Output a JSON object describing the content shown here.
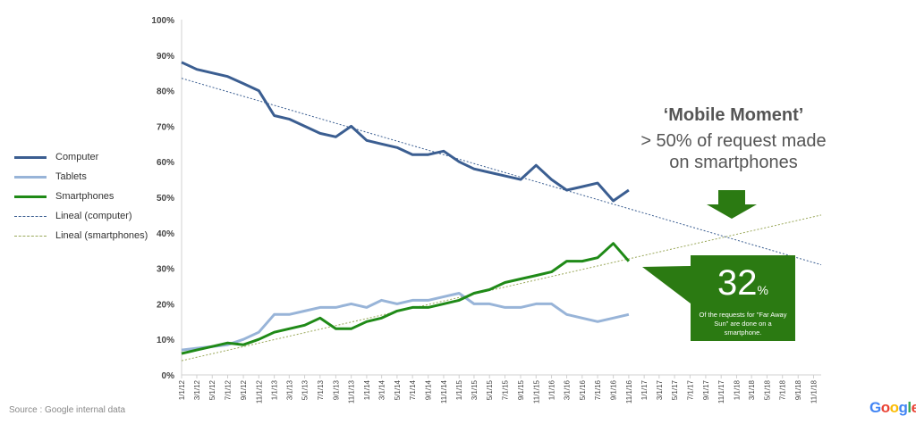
{
  "chart_data": {
    "type": "line",
    "x_tick_labels": [
      "1/1/12",
      "3/1/12",
      "5/1/12",
      "7/1/12",
      "9/1/12",
      "11/1/12",
      "1/1/13",
      "3/1/13",
      "5/1/13",
      "7/1/13",
      "9/1/13",
      "11/1/13",
      "1/1/14",
      "3/1/14",
      "5/1/14",
      "7/1/14",
      "9/1/14",
      "11/1/14",
      "1/1/15",
      "3/1/15",
      "5/1/15",
      "7/1/15",
      "9/1/15",
      "11/1/15",
      "1/1/16",
      "3/1/16",
      "5/1/16",
      "7/1/16",
      "9/1/16",
      "11/1/16",
      "1/1/17",
      "3/1/17",
      "5/1/17",
      "7/1/17",
      "9/1/17",
      "11/1/17",
      "1/1/18",
      "3/1/18",
      "5/1/18",
      "7/1/18",
      "9/1/18",
      "11/1/18"
    ],
    "y_tick_labels": [
      "0%",
      "10%",
      "20%",
      "30%",
      "40%",
      "50%",
      "60%",
      "70%",
      "80%",
      "90%",
      "100%"
    ],
    "ylim": [
      0,
      100
    ],
    "xlim": [
      "1/1/12",
      "12/1/18"
    ],
    "grid": false,
    "legend_position": "left",
    "series": [
      {
        "name": "Computer",
        "color": "#3b5e91",
        "style": "solid",
        "x": [
          "1/1/12",
          "3/1/12",
          "5/1/12",
          "7/1/12",
          "9/1/12",
          "11/1/12",
          "1/1/13",
          "3/1/13",
          "5/1/13",
          "7/1/13",
          "9/1/13",
          "11/1/13",
          "1/1/14",
          "3/1/14",
          "5/1/14",
          "7/1/14",
          "9/1/14",
          "11/1/14",
          "1/1/15",
          "3/1/15",
          "5/1/15",
          "7/1/15",
          "9/1/15",
          "11/1/15",
          "1/1/16",
          "3/1/16",
          "5/1/16",
          "7/1/16",
          "9/1/16",
          "11/1/16"
        ],
        "values": [
          88,
          86,
          85,
          84,
          82,
          80,
          73,
          72,
          70,
          68,
          67,
          70,
          66,
          65,
          64,
          62,
          62,
          63,
          60,
          58,
          57,
          56,
          55,
          59,
          55,
          52,
          53,
          54,
          49,
          52
        ]
      },
      {
        "name": "Tablets",
        "color": "#98b4d8",
        "style": "solid",
        "x": [
          "1/1/12",
          "3/1/12",
          "5/1/12",
          "7/1/12",
          "9/1/12",
          "11/1/12",
          "1/1/13",
          "3/1/13",
          "5/1/13",
          "7/1/13",
          "9/1/13",
          "11/1/13",
          "1/1/14",
          "3/1/14",
          "5/1/14",
          "7/1/14",
          "9/1/14",
          "11/1/14",
          "1/1/15",
          "3/1/15",
          "5/1/15",
          "7/1/15",
          "9/1/15",
          "11/1/15",
          "1/1/16",
          "3/1/16",
          "5/1/16",
          "7/1/16",
          "9/1/16",
          "11/1/16"
        ],
        "values": [
          7,
          7.5,
          8,
          8.5,
          10,
          12,
          17,
          17,
          18,
          19,
          19,
          20,
          19,
          21,
          20,
          21,
          21,
          22,
          23,
          20,
          20,
          19,
          19,
          20,
          20,
          17,
          16,
          15,
          16,
          17
        ]
      },
      {
        "name": "Smartphones",
        "color": "#1f8a17",
        "style": "solid",
        "x": [
          "1/1/12",
          "3/1/12",
          "5/1/12",
          "7/1/12",
          "9/1/12",
          "11/1/12",
          "1/1/13",
          "3/1/13",
          "5/1/13",
          "7/1/13",
          "9/1/13",
          "11/1/13",
          "1/1/14",
          "3/1/14",
          "5/1/14",
          "7/1/14",
          "9/1/14",
          "11/1/14",
          "1/1/15",
          "3/1/15",
          "5/1/15",
          "7/1/15",
          "9/1/15",
          "11/1/15",
          "1/1/16",
          "3/1/16",
          "5/1/16",
          "7/1/16",
          "9/1/16",
          "11/1/16"
        ],
        "values": [
          6,
          7,
          8,
          9,
          8.5,
          10,
          12,
          13,
          14,
          16,
          13,
          13,
          15,
          16,
          18,
          19,
          19,
          20,
          21,
          23,
          24,
          26,
          27,
          28,
          29,
          32,
          32,
          33,
          37,
          32
        ]
      },
      {
        "name": "Lineal (computer)",
        "color": "#3b5e91",
        "style": "dotted",
        "x": [
          "1/1/12",
          "12/1/18"
        ],
        "values": [
          83.5,
          31
        ]
      },
      {
        "name": "Lineal (smartphones)",
        "color": "#9aa85a",
        "style": "dotted",
        "x": [
          "1/1/12",
          "12/1/18"
        ],
        "values": [
          4,
          45
        ]
      }
    ]
  },
  "annotation": {
    "title": "‘Mobile Moment’",
    "line1": "> 50% of request made",
    "line2": "on smartphones",
    "callout_value": "32",
    "callout_unit": "%",
    "callout_text": "Of the requests for \"Far Away Sun\" are done on a smartphone.",
    "callout_color": "#2b7a12"
  },
  "footer": {
    "source": "Source : Google internal data",
    "logo_text": "Google"
  }
}
